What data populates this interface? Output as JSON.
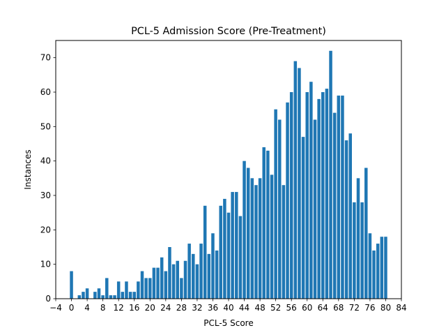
{
  "chart_data": {
    "type": "bar",
    "title": "PCL-5 Admission Score (Pre-Treatment)",
    "xlabel": "PCL-5 Score",
    "ylabel": "Instances",
    "xlim": [
      -4,
      84
    ],
    "ylim": [
      0,
      75
    ],
    "x_ticks": [
      -4,
      0,
      4,
      8,
      12,
      16,
      20,
      24,
      28,
      32,
      36,
      40,
      44,
      48,
      52,
      56,
      60,
      64,
      68,
      72,
      76,
      80,
      84
    ],
    "y_ticks": [
      0,
      10,
      20,
      30,
      40,
      50,
      60,
      70
    ],
    "bar_color": "#1f77b4",
    "grid": false,
    "x": [
      0,
      1,
      2,
      3,
      4,
      5,
      6,
      7,
      8,
      9,
      10,
      11,
      12,
      13,
      14,
      15,
      16,
      17,
      18,
      19,
      20,
      21,
      22,
      23,
      24,
      25,
      26,
      27,
      28,
      29,
      30,
      31,
      32,
      33,
      34,
      35,
      36,
      37,
      38,
      39,
      40,
      41,
      42,
      43,
      44,
      45,
      46,
      47,
      48,
      49,
      50,
      51,
      52,
      53,
      54,
      55,
      56,
      57,
      58,
      59,
      60,
      61,
      62,
      63,
      64,
      65,
      66,
      67,
      68,
      69,
      70,
      71,
      72,
      73,
      74,
      75,
      76,
      77,
      78,
      79,
      80
    ],
    "values": [
      8,
      0,
      1,
      2,
      3,
      0,
      2,
      3,
      1,
      6,
      1,
      1,
      5,
      2,
      5,
      2,
      2,
      5,
      8,
      6,
      6,
      9,
      9,
      12,
      8,
      15,
      10,
      11,
      6,
      11,
      16,
      13,
      10,
      16,
      27,
      13,
      19,
      14,
      27,
      29,
      25,
      31,
      31,
      24,
      40,
      38,
      35,
      33,
      35,
      44,
      43,
      36,
      55,
      52,
      33,
      57,
      60,
      69,
      67,
      47,
      60,
      63,
      52,
      58,
      60,
      61,
      72,
      54,
      59,
      59,
      46,
      48,
      28,
      35,
      28,
      38,
      19,
      14,
      16,
      18,
      18
    ]
  }
}
